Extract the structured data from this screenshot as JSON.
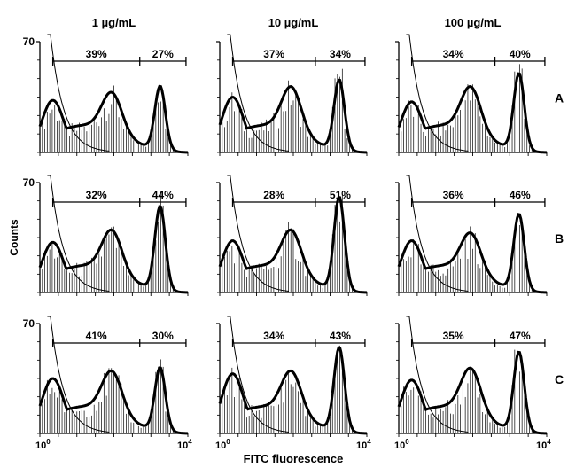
{
  "chart_data": {
    "type": "histogram-grid",
    "concentration_headers": [
      "1 µg/mL",
      "10 µg/mL",
      "100 µg/mL"
    ],
    "row_labels": [
      "A",
      "B",
      "C"
    ],
    "ylabel": "Counts",
    "xlabel": "FITC fluorescence",
    "y_max_label": "70",
    "ylim": [
      0,
      70
    ],
    "x_scale": "log",
    "xlim": [
      1,
      10000
    ],
    "x_tick_labels": {
      "low": "10",
      "low_exp": "0",
      "high": "10",
      "high_exp": "4"
    },
    "gate_split_log": [
      2.7,
      2.6,
      2.6
    ],
    "gate_start_log": 0.35,
    "gate_end_log": 3.95,
    "panels": [
      {
        "row": "A",
        "col": "1 µg/mL",
        "left_pct": "39%",
        "right_pct": "27%",
        "peaks": [
          33,
          28,
          40
        ]
      },
      {
        "row": "A",
        "col": "10 µg/mL",
        "left_pct": "37%",
        "right_pct": "34%",
        "peaks": [
          35,
          32,
          44
        ]
      },
      {
        "row": "A",
        "col": "100 µg/mL",
        "left_pct": "34%",
        "right_pct": "40%",
        "peaks": [
          32,
          32,
          48
        ]
      },
      {
        "row": "B",
        "col": "1 µg/mL",
        "left_pct": "32%",
        "right_pct": "44%",
        "peaks": [
          32,
          30,
          53
        ]
      },
      {
        "row": "B",
        "col": "10 µg/mL",
        "left_pct": "28%",
        "right_pct": "51%",
        "peaks": [
          33,
          30,
          59
        ]
      },
      {
        "row": "B",
        "col": "100 µg/mL",
        "left_pct": "36%",
        "right_pct": "46%",
        "peaks": [
          33,
          28,
          48
        ]
      },
      {
        "row": "C",
        "col": "1 µg/mL",
        "left_pct": "41%",
        "right_pct": "30%",
        "peaks": [
          35,
          30,
          40
        ]
      },
      {
        "row": "C",
        "col": "10 µg/mL",
        "left_pct": "34%",
        "right_pct": "43%",
        "peaks": [
          38,
          30,
          53
        ]
      },
      {
        "row": "C",
        "col": "100 µg/mL",
        "left_pct": "35%",
        "right_pct": "47%",
        "peaks": [
          34,
          32,
          50
        ]
      }
    ]
  }
}
